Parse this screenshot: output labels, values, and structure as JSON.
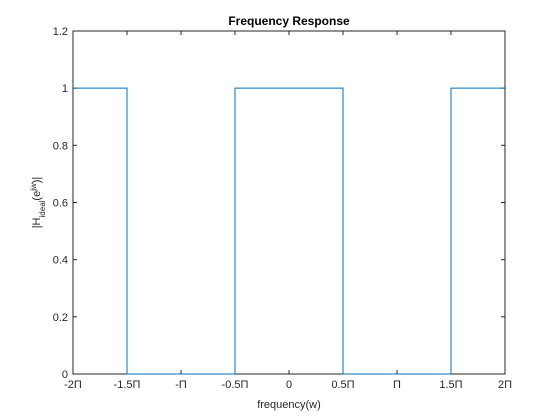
{
  "chart_data": {
    "type": "line",
    "title": "Frequency Response",
    "xlabel": "frequency(w)",
    "ylabel": {
      "base": "|H",
      "sub": "ideal",
      "mid": "(e",
      "sup": "jw",
      "end": ")|"
    },
    "xlim": [
      -2,
      2
    ],
    "ylim": [
      0,
      1.2
    ],
    "x_unit": "π",
    "xticks": [
      {
        "value": -2,
        "label": "-2Π"
      },
      {
        "value": -1.5,
        "label": "-1.5Π"
      },
      {
        "value": -1,
        "label": "-Π"
      },
      {
        "value": -0.5,
        "label": "-0.5Π"
      },
      {
        "value": 0,
        "label": "0"
      },
      {
        "value": 0.5,
        "label": "0.5Π"
      },
      {
        "value": 1,
        "label": "Π"
      },
      {
        "value": 1.5,
        "label": "1.5Π"
      },
      {
        "value": 2,
        "label": "2Π"
      }
    ],
    "yticks": [
      {
        "value": 0,
        "label": "0"
      },
      {
        "value": 0.2,
        "label": "0.2"
      },
      {
        "value": 0.4,
        "label": "0.4"
      },
      {
        "value": 0.6,
        "label": "0.6"
      },
      {
        "value": 0.8,
        "label": "0.8"
      },
      {
        "value": 1,
        "label": "1"
      },
      {
        "value": 1.2,
        "label": "1.2"
      }
    ],
    "grid": false,
    "series": [
      {
        "color": "#0072bd",
        "x": [
          -2,
          -1.5,
          -1.5,
          -0.5,
          -0.5,
          0.5,
          0.5,
          1.5,
          1.5,
          2
        ],
        "y": [
          1,
          1,
          0,
          0,
          1,
          1,
          0,
          0,
          1,
          1
        ]
      }
    ]
  }
}
